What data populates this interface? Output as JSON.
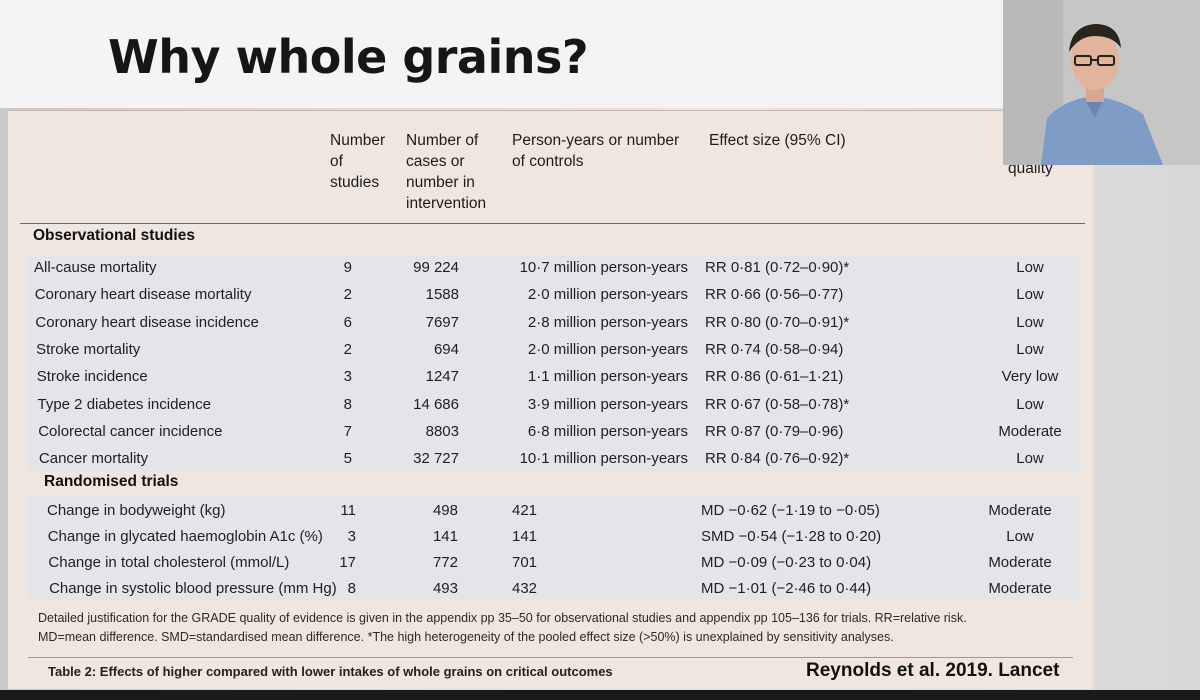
{
  "slide": {
    "title": "Why whole grains?",
    "citation": "Reynolds et al. 2019. Lancet"
  },
  "table": {
    "headers": {
      "studies": "Number of studies",
      "studies_lines": [
        "Number",
        "of",
        "studies"
      ],
      "cases_lines": [
        "Number of",
        "cases or",
        "number in",
        "intervention"
      ],
      "py_lines": [
        "Person-years or number",
        "of controls"
      ],
      "effect": "Effect size (95% CI)",
      "quality": "quality"
    },
    "sections": {
      "observational": "Observational studies",
      "randomised": "Randomised trials"
    },
    "observational_rows": [
      {
        "outcome": "All-cause mortality",
        "studies": "9",
        "cases": "99 224",
        "py": "10·7 million person-years",
        "effect": "RR 0·81 (0·72–0·90)*",
        "quality": "Low"
      },
      {
        "outcome": "Coronary heart disease mortality",
        "studies": "2",
        "cases": "1588",
        "py": "2·0 million person-years",
        "effect": "RR 0·66 (0·56–0·77)",
        "quality": "Low"
      },
      {
        "outcome": "Coronary heart disease incidence",
        "studies": "6",
        "cases": "7697",
        "py": "2·8 million person-years",
        "effect": "RR 0·80 (0·70–0·91)*",
        "quality": "Low"
      },
      {
        "outcome": "Stroke mortality",
        "studies": "2",
        "cases": "694",
        "py": "2·0 million person-years",
        "effect": "RR 0·74 (0·58–0·94)",
        "quality": "Low"
      },
      {
        "outcome": "Stroke incidence",
        "studies": "3",
        "cases": "1247",
        "py": "1·1 million person-years",
        "effect": "RR 0·86 (0·61–1·21)",
        "quality": "Very low"
      },
      {
        "outcome": "Type 2 diabetes incidence",
        "studies": "8",
        "cases": "14 686",
        "py": "3·9 million person-years",
        "effect": "RR 0·67 (0·58–0·78)*",
        "quality": "Low"
      },
      {
        "outcome": "Colorectal cancer incidence",
        "studies": "7",
        "cases": "8803",
        "py": "6·8 million person-years",
        "effect": "RR 0·87 (0·79–0·96)",
        "quality": "Moderate"
      },
      {
        "outcome": "Cancer mortality",
        "studies": "5",
        "cases": "32 727",
        "py": "10·1 million person-years",
        "effect": "RR 0·84 (0·76–0·92)*",
        "quality": "Low"
      }
    ],
    "randomised_rows": [
      {
        "outcome": "Change in bodyweight (kg)",
        "studies": "11",
        "cases": "498",
        "py": "421",
        "effect": "MD −0·62 (−1·19 to −0·05)",
        "quality": "Moderate"
      },
      {
        "outcome": "Change in glycated haemoglobin A1c (%)",
        "studies": "3",
        "cases": "141",
        "py": "141",
        "effect": "SMD −0·54 (−1·28 to 0·20)",
        "quality": "Low"
      },
      {
        "outcome": "Change in total cholesterol (mmol/L)",
        "studies": "17",
        "cases": "772",
        "py": "701",
        "effect": "MD −0·09 (−0·23 to 0·04)",
        "quality": "Moderate"
      },
      {
        "outcome": "Change in systolic blood pressure (mm Hg)",
        "studies": "8",
        "cases": "493",
        "py": "432",
        "effect": "MD −1·01 (−2·46 to 0·44)",
        "quality": "Moderate"
      }
    ],
    "footnote_1": "Detailed justification for the GRADE quality of evidence is given in the appendix pp 35–50 for observational studies and appendix pp 105–136 for trials. RR=relative risk.",
    "footnote_2": "MD=mean difference. SMD=standardised mean difference. *The high heterogeneity of the pooled effect size (>50%) is unexplained by sensitivity analyses.",
    "caption": "Table 2: Effects of higher compared with lower intakes of whole grains on critical outcomes"
  },
  "colors": {
    "table_bg": "#efe6e0",
    "band_bg": "#e4e5e9",
    "title": "#161616"
  }
}
